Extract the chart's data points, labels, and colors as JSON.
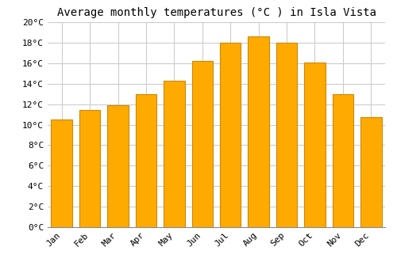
{
  "title": "Average monthly temperatures (°C ) in Isla Vista",
  "months": [
    "Jan",
    "Feb",
    "Mar",
    "Apr",
    "May",
    "Jun",
    "Jul",
    "Aug",
    "Sep",
    "Oct",
    "Nov",
    "Dec"
  ],
  "values": [
    10.5,
    11.4,
    11.9,
    13.0,
    14.3,
    16.2,
    18.0,
    18.6,
    18.0,
    16.1,
    13.0,
    10.7
  ],
  "bar_color": "#FFAA00",
  "bar_edge_color": "#CC8800",
  "ylim": [
    0,
    20
  ],
  "ytick_step": 2,
  "background_color": "#FFFFFF",
  "plot_bg_color": "#FFFFFF",
  "grid_color": "#CCCCCC",
  "title_fontsize": 10,
  "tick_fontsize": 8,
  "font_family": "monospace",
  "bar_width": 0.75
}
